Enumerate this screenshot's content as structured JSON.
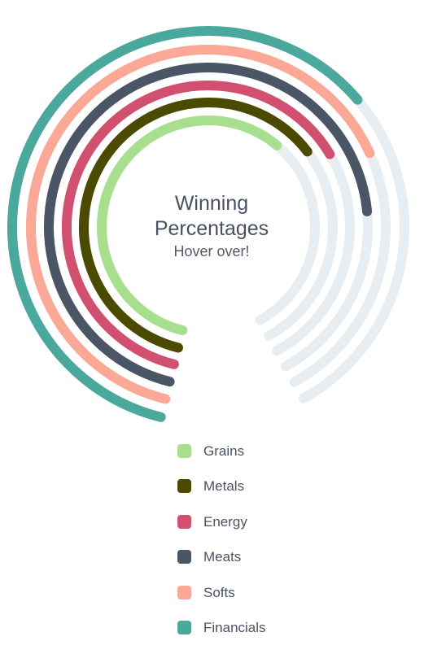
{
  "chart_data": {
    "type": "radial-bar",
    "title_line_1": "Winning",
    "title_line_2": "Percentages",
    "subtitle": "Hover over!",
    "value_range": [
      0,
      100
    ],
    "track_color": "#e8edf1",
    "series": [
      {
        "name": "Grains",
        "value": 65,
        "color": "#a8df8e"
      },
      {
        "name": "Metals",
        "value": 69,
        "color": "#4a4a00"
      },
      {
        "name": "Energy",
        "value": 71,
        "color": "#d1506f"
      },
      {
        "name": "Meats",
        "value": 79,
        "color": "#4a5566"
      },
      {
        "name": "Softs",
        "value": 73,
        "color": "#fca897"
      },
      {
        "name": "Financials",
        "value": 68,
        "color": "#4aa99c"
      }
    ]
  }
}
